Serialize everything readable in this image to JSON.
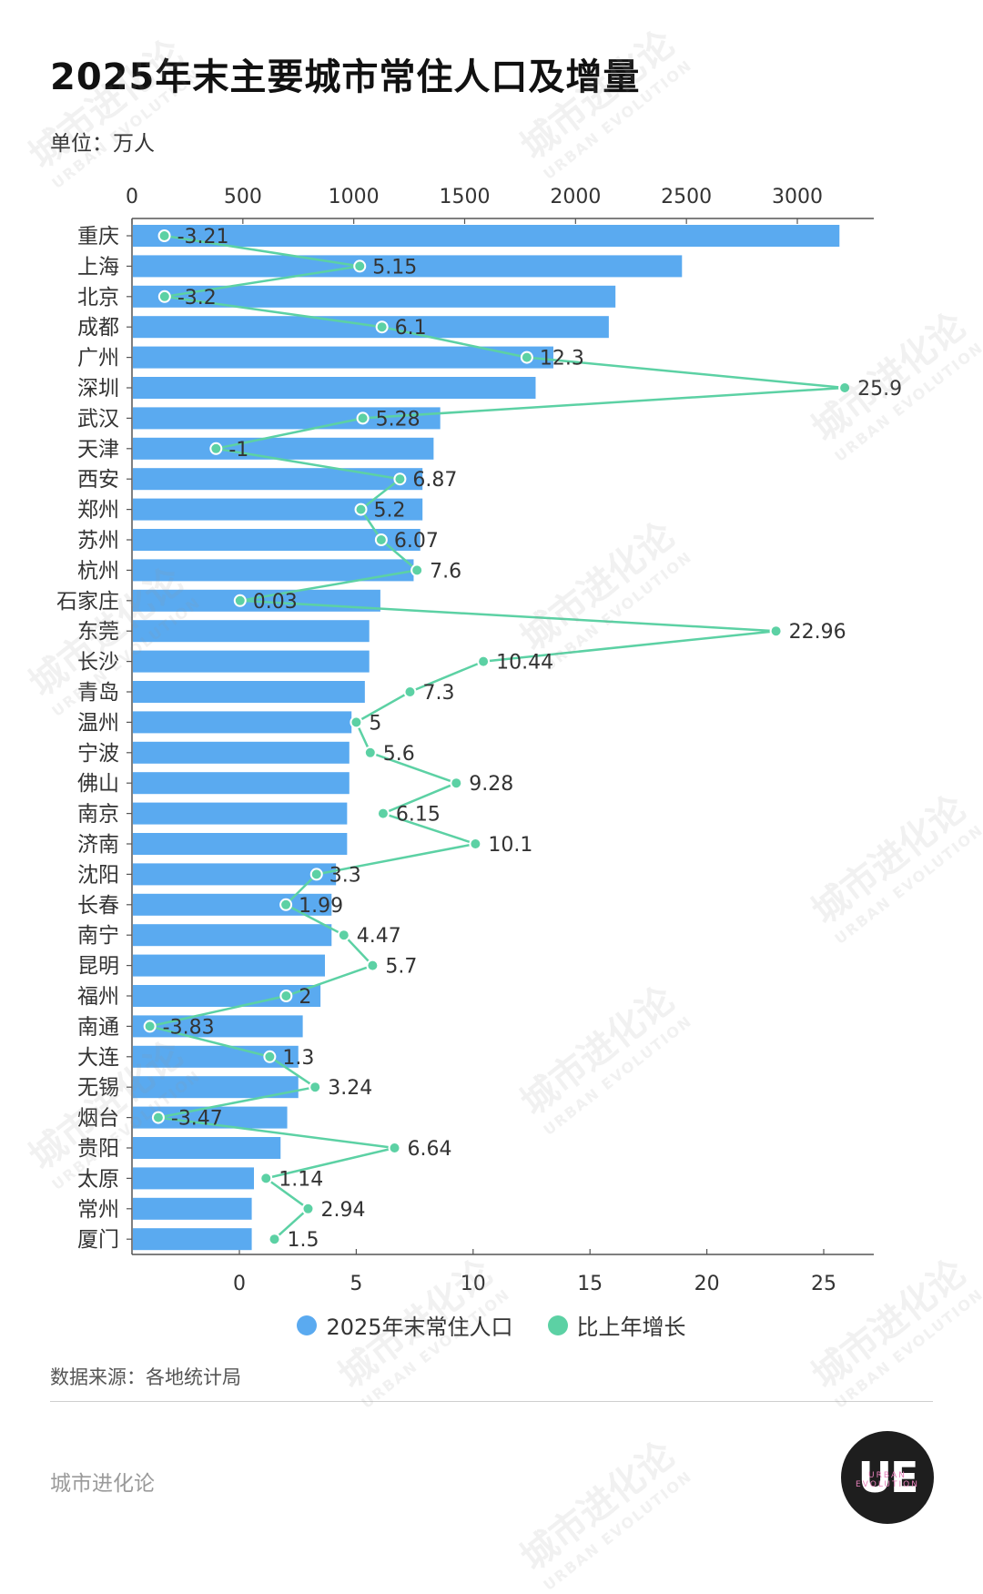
{
  "title": "2025年末主要城市常住人口及增量",
  "unit_label": "单位：万人",
  "source": "数据来源：各地统计局",
  "brand": "城市进化论",
  "logo": {
    "text": "UE",
    "sub": "URBAN EVOLUTION"
  },
  "watermark": {
    "text": "城市进化论",
    "sub": "URBAN EVOLUTION"
  },
  "colors": {
    "bar": "#5aaaf0",
    "line": "#5cd1a4",
    "axis": "#555555"
  },
  "legend": [
    {
      "label": "2025年末常住人口",
      "color": "#5aaaf0"
    },
    {
      "label": "比上年增长",
      "color": "#5cd1a4"
    }
  ],
  "chart_data": {
    "type": "bar",
    "orientation": "horizontal",
    "categories": [
      "重庆",
      "上海",
      "北京",
      "成都",
      "广州",
      "深圳",
      "武汉",
      "天津",
      "西安",
      "郑州",
      "苏州",
      "杭州",
      "石家庄",
      "东莞",
      "长沙",
      "青岛",
      "温州",
      "宁波",
      "佛山",
      "南京",
      "济南",
      "沈阳",
      "长春",
      "南宁",
      "昆明",
      "福州",
      "南通",
      "大连",
      "无锡",
      "烟台",
      "贵阳",
      "太原",
      "常州",
      "厦门"
    ],
    "series": [
      {
        "name": "2025年末常住人口",
        "type": "bar",
        "axis": "top",
        "values": [
          3190,
          2480,
          2180,
          2150,
          1900,
          1820,
          1390,
          1360,
          1310,
          1310,
          1300,
          1270,
          1120,
          1070,
          1070,
          1050,
          990,
          980,
          980,
          970,
          970,
          920,
          900,
          900,
          870,
          850,
          770,
          750,
          750,
          700,
          670,
          550,
          540,
          540
        ]
      },
      {
        "name": "比上年增长",
        "type": "line",
        "axis": "bottom",
        "values": [
          -3.21,
          5.15,
          -3.2,
          6.1,
          12.3,
          25.9,
          5.28,
          -1,
          6.87,
          5.2,
          6.07,
          7.6,
          0.03,
          22.96,
          10.44,
          7.3,
          5,
          5.6,
          9.28,
          6.15,
          10.1,
          3.3,
          1.99,
          4.47,
          5.7,
          2,
          -3.83,
          1.3,
          3.24,
          -3.47,
          6.64,
          1.14,
          2.94,
          1.5
        ],
        "labels": [
          "-3.21",
          "5.15",
          "-3.2",
          "6.1",
          "12.3",
          "25.9",
          "5.28",
          "-1",
          "6.87",
          "5.2",
          "6.07",
          "7.6",
          "0.03",
          "22.96",
          "10.44",
          "7.3",
          "5",
          "5.6",
          "9.28",
          "6.15",
          "10.1",
          "3.3",
          "1.99",
          "4.47",
          "5.7",
          "2",
          "-3.83",
          "1.3",
          "3.24",
          "-3.47",
          "6.64",
          "1.14",
          "2.94",
          "1.5"
        ]
      }
    ],
    "top_axis": {
      "range": [
        0,
        3300
      ],
      "ticks": [
        0,
        500,
        1000,
        1500,
        2000,
        2500,
        3000
      ]
    },
    "bottom_axis": {
      "range": [
        -4.6,
        27.3
      ],
      "ticks": [
        0,
        5,
        10,
        15,
        20,
        25
      ]
    },
    "grid": false,
    "legend_position": "bottom"
  }
}
